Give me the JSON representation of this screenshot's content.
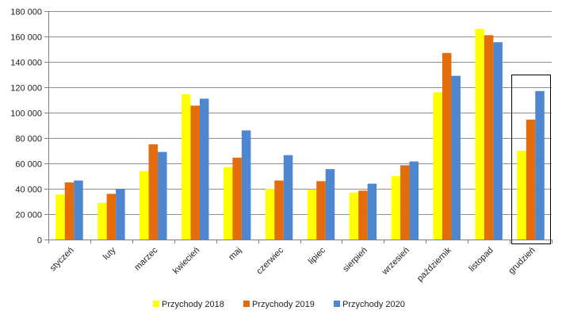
{
  "chart_data": {
    "type": "bar",
    "categories": [
      "styczeń",
      "luty",
      "marzec",
      "kwiecień",
      "maj",
      "czerwiec",
      "lipiec",
      "sierpień",
      "wrzesień",
      "październik",
      "listopad",
      "grudzień"
    ],
    "series": [
      {
        "name": "Przychody 2018",
        "color": "#FFFF00",
        "values": [
          35500,
          29000,
          54000,
          114500,
          57000,
          40000,
          39500,
          37000,
          50000,
          116000,
          166000,
          70000
        ]
      },
      {
        "name": "Przychody 2019",
        "color": "#E46C0A",
        "values": [
          45000,
          36000,
          75000,
          105500,
          64500,
          46500,
          46000,
          38500,
          58500,
          147000,
          161000,
          94500
        ]
      },
      {
        "name": "Przychody 2020",
        "color": "#4F86D0",
        "values": [
          46500,
          40000,
          69000,
          111000,
          86000,
          66500,
          55500,
          44000,
          61500,
          129000,
          155500,
          117000
        ]
      }
    ],
    "ylim": [
      0,
      180000
    ],
    "yticks": [
      0,
      20000,
      40000,
      60000,
      80000,
      100000,
      120000,
      140000,
      160000,
      180000
    ],
    "ytick_labels": [
      "0",
      "20 000",
      "40 000",
      "60 000",
      "80 000",
      "100 000",
      "120 000",
      "140 000",
      "160 000",
      "180 000"
    ],
    "grid": true,
    "legend_position": "bottom",
    "highlight_category": "grudzień",
    "title": "",
    "xlabel": "",
    "ylabel": ""
  }
}
